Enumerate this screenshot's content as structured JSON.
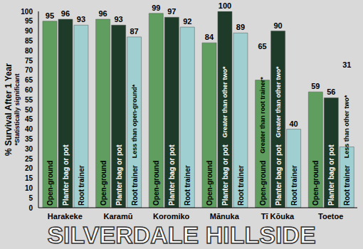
{
  "chart_data": {
    "type": "bar",
    "title": "SILVERDALE HILLSIDE",
    "y_label": "% Survival After 1 Year",
    "subtitle": "*Statistically significant",
    "categories": [
      "Harakeke",
      "Karamū",
      "Koromiko",
      "Mānuka",
      "Tī Kōuka",
      "Toetoe"
    ],
    "series": [
      {
        "name": "Open-ground",
        "color": "#5f9e5f",
        "values": [
          95,
          96,
          99,
          84,
          65,
          59
        ]
      },
      {
        "name": "Planter bag or pot",
        "color": "#1e3b29",
        "values": [
          96,
          93,
          97,
          100,
          90,
          56
        ]
      },
      {
        "name": "Root trainer",
        "color": "#9fcfd0",
        "values": [
          93,
          87,
          92,
          89,
          40,
          31
        ]
      }
    ],
    "ylim": [
      0,
      100
    ],
    "yticks": [
      0,
      5,
      10,
      15,
      20,
      25,
      30,
      35,
      40,
      45,
      50,
      55,
      60,
      65,
      70,
      75,
      80,
      85,
      90,
      95,
      100
    ],
    "grid": false,
    "data_labels": true,
    "annotations": [
      {
        "category": "Karamū",
        "series": "Root trainer",
        "text": "Less than open-ground*"
      },
      {
        "category": "Mānuka",
        "series": "Planter bag or pot",
        "text": "Greater than other two*"
      },
      {
        "category": "Tī Kōuka",
        "series": "Open-ground",
        "text": "Greater than root trainer*"
      },
      {
        "category": "Tī Kōuka",
        "series": "Planter bag or pot",
        "text": "Greater than other two*"
      },
      {
        "category": "Toetoe",
        "series": "Root trainer",
        "text": "Less than other two*"
      }
    ]
  }
}
